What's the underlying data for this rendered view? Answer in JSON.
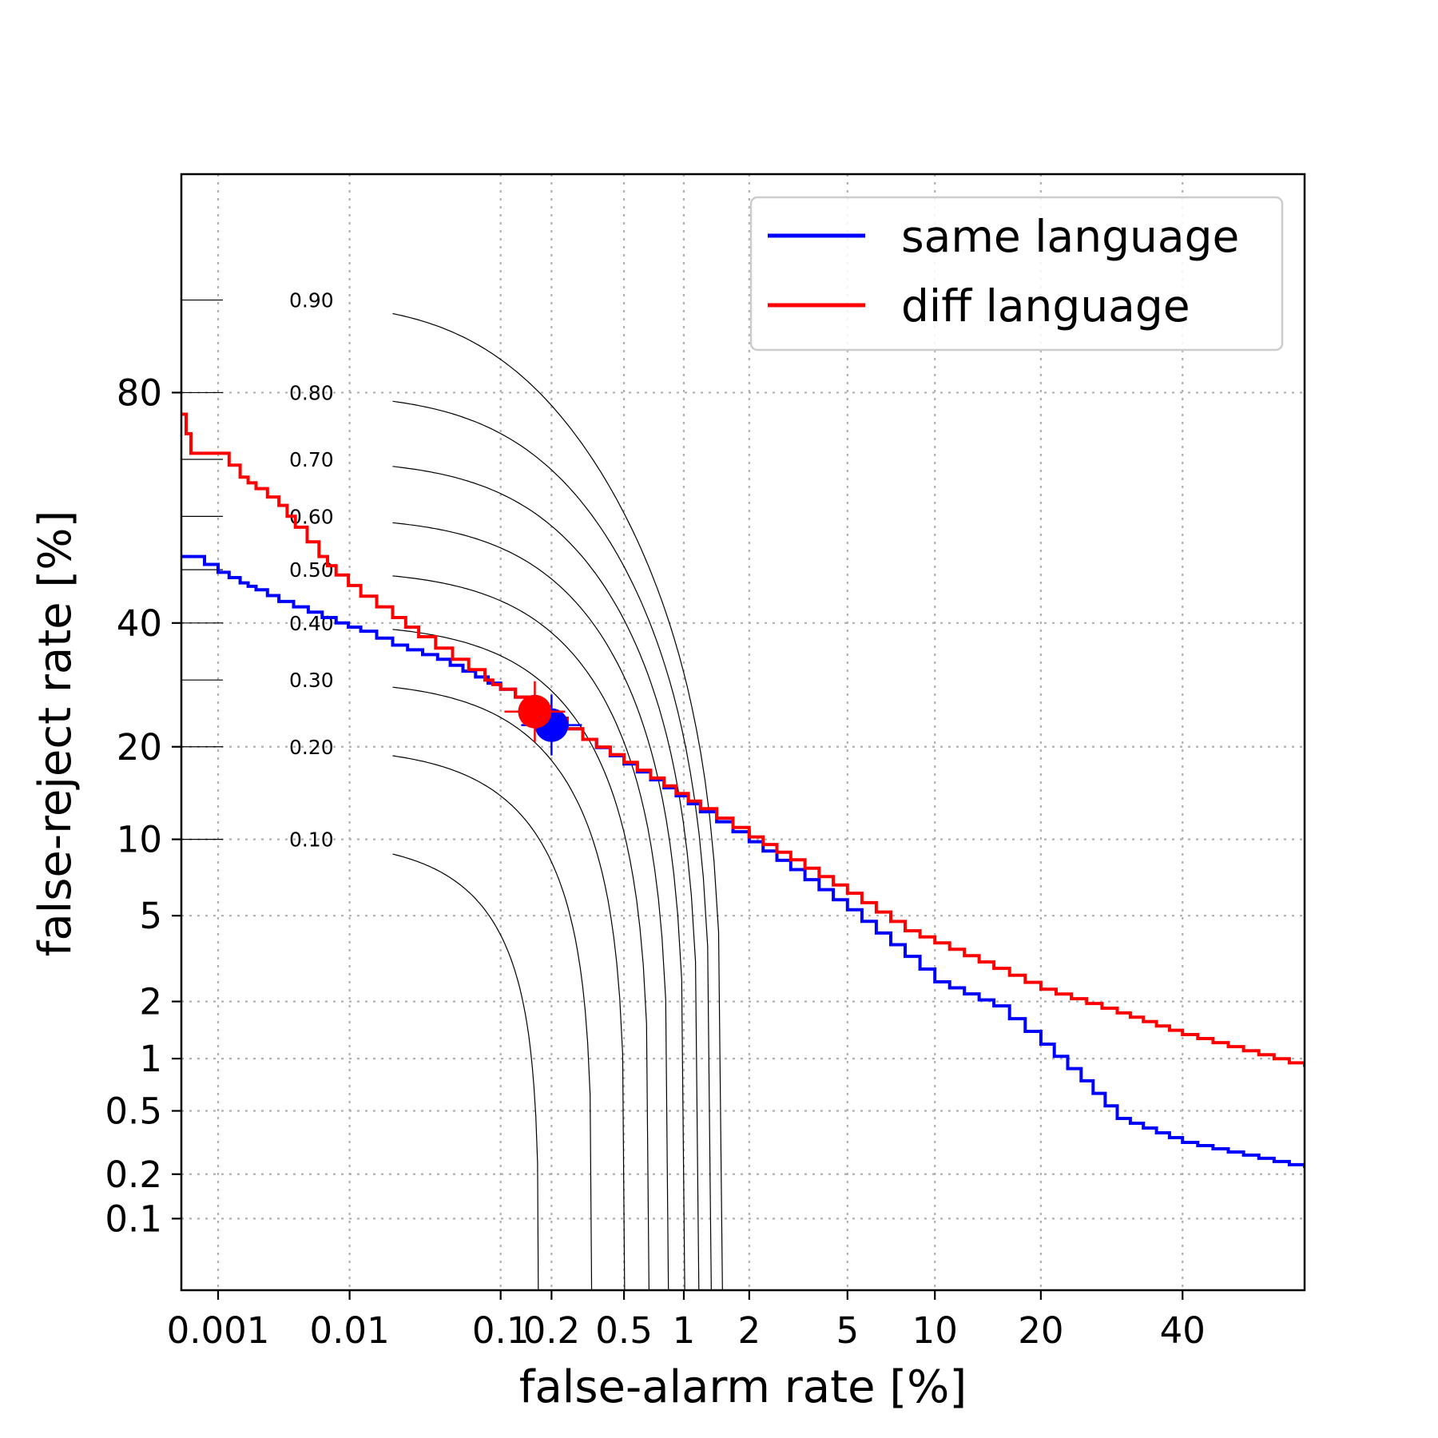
{
  "chart_data": {
    "type": "line",
    "title": "",
    "xlabel": "false-alarm rate [%]",
    "ylabel": "false-reject rate [%]",
    "x_scale": "probit",
    "y_scale": "probit",
    "xlim": [
      0.0005,
      60
    ],
    "ylim": [
      0.03,
      97
    ],
    "xticks": [
      0.001,
      0.01,
      0.1,
      0.2,
      0.5,
      1,
      2,
      5,
      10,
      20,
      40
    ],
    "xtick_labels": [
      "0.001",
      "0.01",
      "0.1",
      "0.2",
      "0.5",
      "1",
      "2",
      "5",
      "10",
      "20",
      "40"
    ],
    "yticks": [
      0.1,
      0.2,
      0.5,
      1,
      2,
      5,
      10,
      20,
      40,
      80
    ],
    "ytick_labels": [
      "0.1",
      "0.2",
      "0.5",
      "1",
      "2",
      "5",
      "10",
      "20",
      "40",
      "80"
    ],
    "grid": true,
    "legend_position": "top-right",
    "series": [
      {
        "name": "same language",
        "color": "#0000ff",
        "x": [
          0.0005,
          0.0006,
          0.001,
          0.0015,
          0.002,
          0.003,
          0.005,
          0.008,
          0.012,
          0.02,
          0.04,
          0.07,
          0.1,
          0.15,
          0.2,
          0.3,
          0.5,
          0.8,
          1.2,
          2,
          3,
          5,
          8,
          10,
          15,
          20,
          25,
          30,
          40,
          60
        ],
        "y": [
          52.5,
          52.5,
          49.5,
          47.5,
          46.2,
          44,
          42,
          40,
          38.5,
          36,
          33.5,
          30.5,
          28.5,
          26,
          24,
          21,
          17.8,
          15,
          12.5,
          9.8,
          7.7,
          5.3,
          3.3,
          2.5,
          1.9,
          1.2,
          0.75,
          0.45,
          0.32,
          0.22
        ]
      },
      {
        "name": "diff language",
        "color": "#ff0000",
        "x": [
          0.0005,
          0.0006,
          0.001,
          0.0015,
          0.002,
          0.003,
          0.004,
          0.006,
          0.008,
          0.012,
          0.02,
          0.03,
          0.05,
          0.08,
          0.1,
          0.15,
          0.2,
          0.3,
          0.5,
          0.8,
          1.2,
          2,
          3,
          5,
          8,
          10,
          15,
          20,
          30,
          40,
          60
        ],
        "y": [
          77,
          71,
          71,
          67,
          65,
          62,
          58,
          52.5,
          49,
          45,
          41,
          37.5,
          33.5,
          30,
          28.5,
          26,
          24,
          21,
          18,
          15.2,
          12.8,
          10.2,
          8.4,
          6.2,
          4.3,
          3.8,
          2.9,
          2.3,
          1.75,
          1.35,
          0.9
        ]
      }
    ],
    "operating_points": [
      {
        "series": "same language",
        "x": 0.2,
        "y": 23,
        "color": "#0000ff"
      },
      {
        "series": "diff language",
        "x": 0.16,
        "y": 25,
        "color": "#ff0000"
      }
    ],
    "contours": {
      "levels": [
        0.1,
        0.2,
        0.3,
        0.4,
        0.5,
        0.6,
        0.7,
        0.8,
        0.9
      ],
      "labels": [
        "0.10",
        "0.20",
        "0.30",
        "0.40",
        "0.50",
        "0.60",
        "0.70",
        "0.80",
        "0.90"
      ]
    }
  }
}
